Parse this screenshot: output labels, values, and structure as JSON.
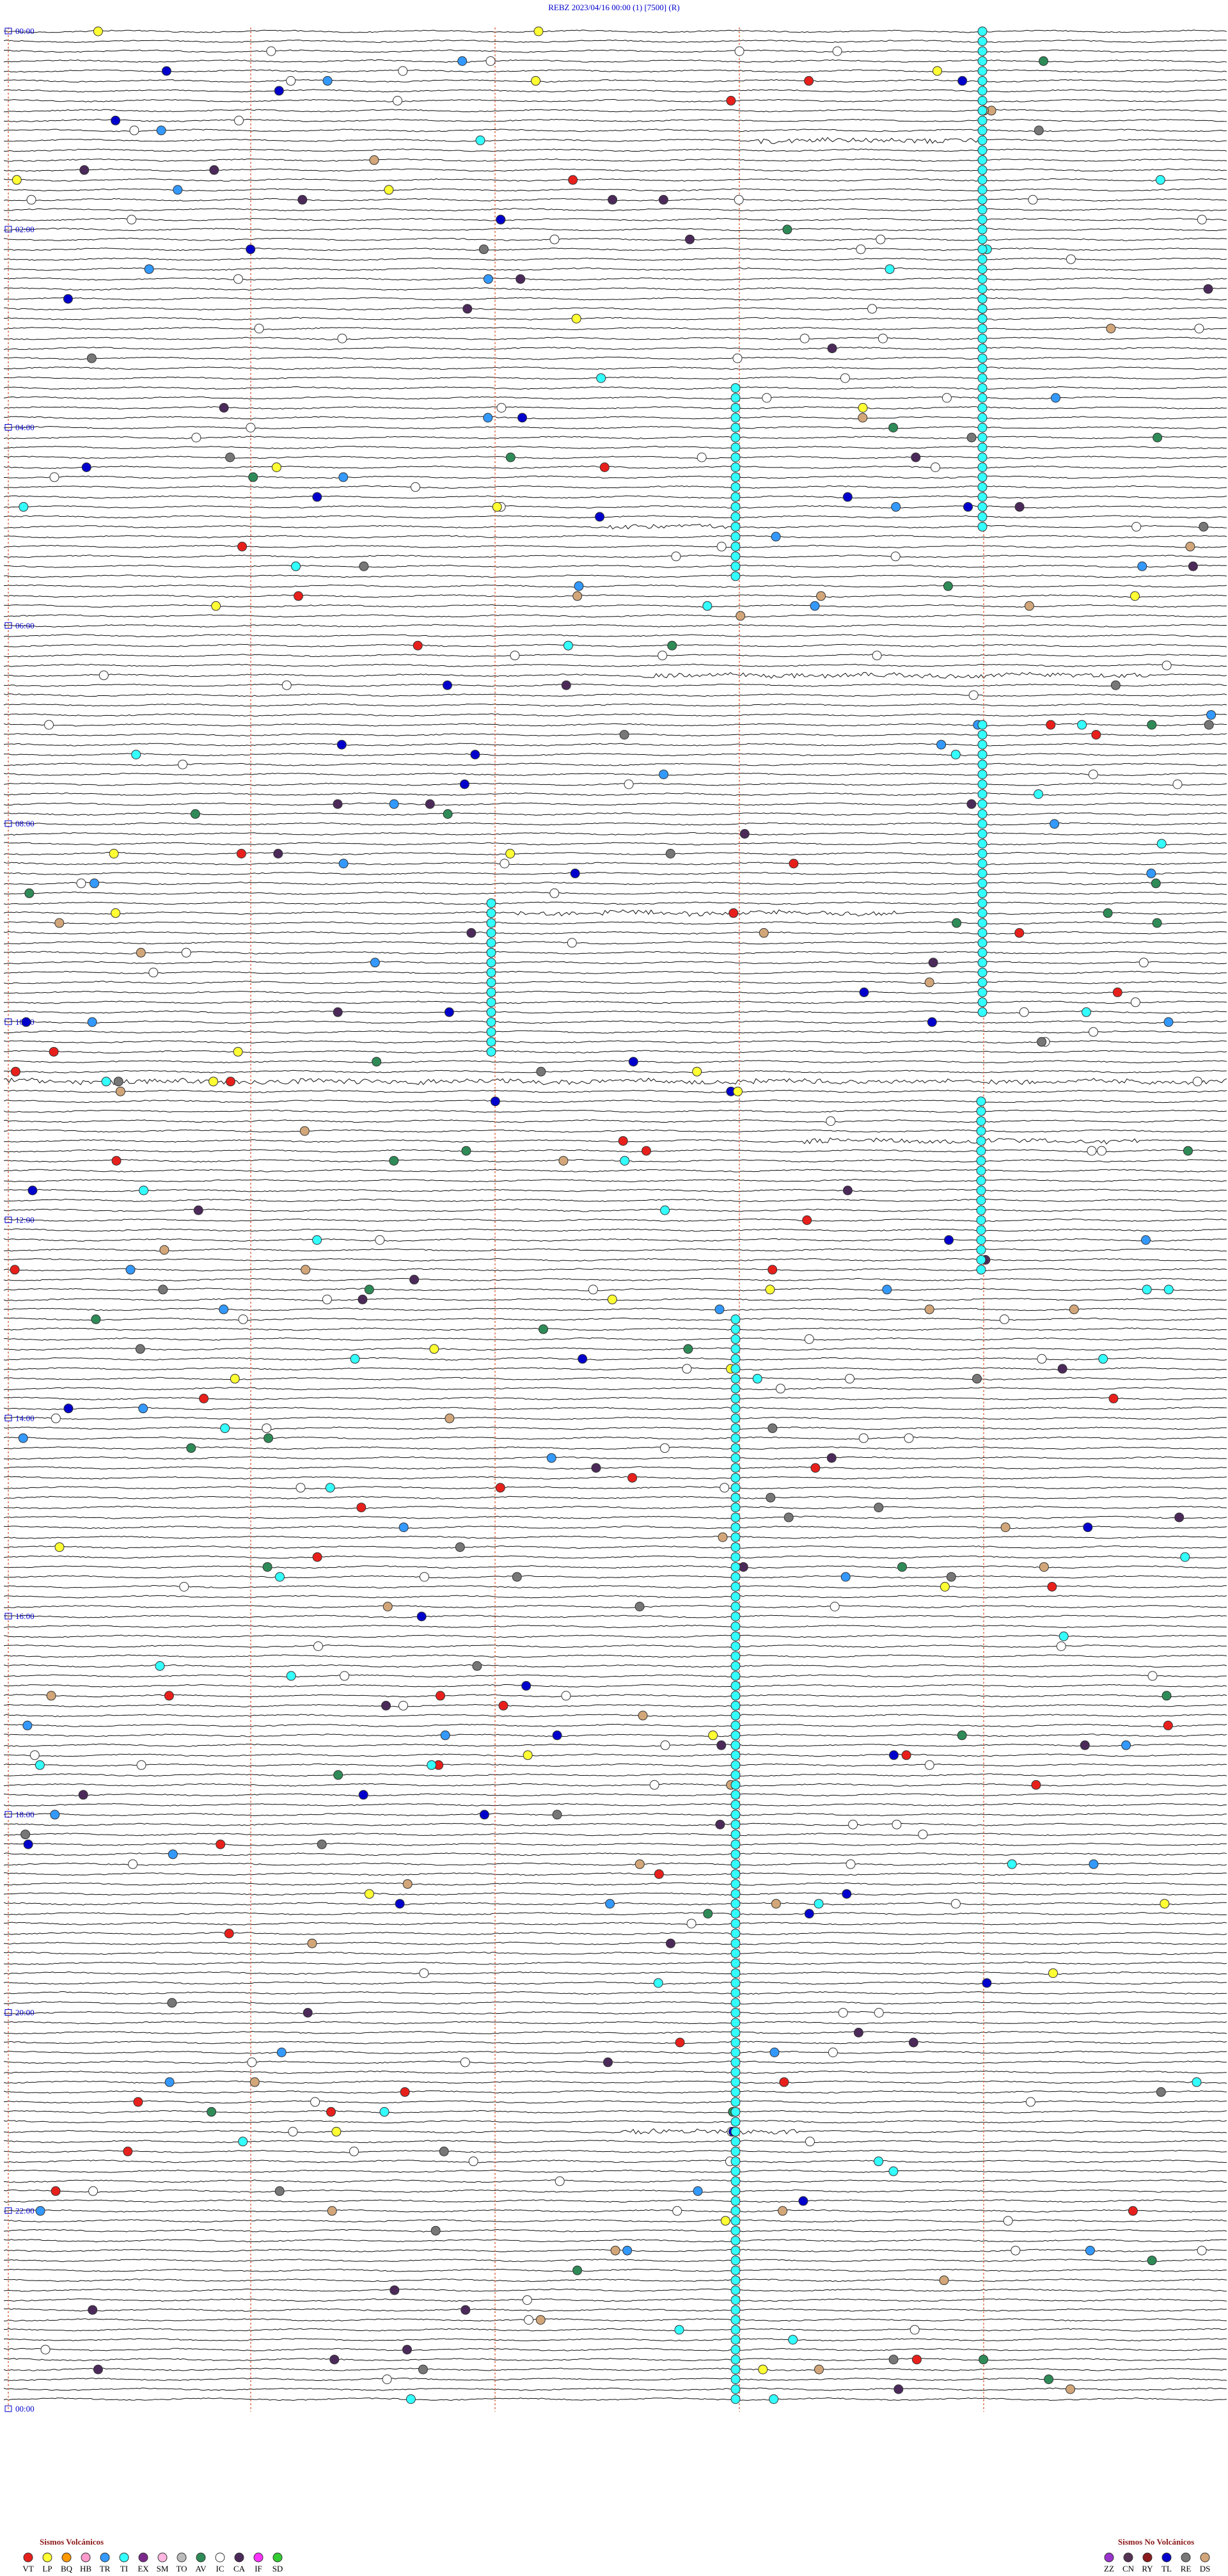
{
  "header": {
    "title": "REBZ     2023/04/16 00:00     (1)     [7500]    (R)"
  },
  "time_labels": [
    "00:00",
    "02:00",
    "04:00",
    "06:00",
    "08:00",
    "10:00",
    "12:00",
    "14:00",
    "16:00",
    "18:00",
    "20:00",
    "22:00",
    "00:00"
  ],
  "legend": {
    "volcanic": {
      "title": "Sismos Volcánicos",
      "items": [
        {
          "code": "VT",
          "color": "#e8201c"
        },
        {
          "code": "LP",
          "color": "#ffff33"
        },
        {
          "code": "BQ",
          "color": "#ff9900"
        },
        {
          "code": "HB",
          "color": "#ff99cc"
        },
        {
          "code": "TR",
          "color": "#3399ff"
        },
        {
          "code": "TI",
          "color": "#33ffff"
        },
        {
          "code": "EX",
          "color": "#7b2a8c"
        },
        {
          "code": "SM",
          "color": "#ffb6e0"
        },
        {
          "code": "TO",
          "color": "#bbbbbb"
        },
        {
          "code": "AV",
          "color": "#2e8b57"
        },
        {
          "code": "IC",
          "color": "#ffffff"
        },
        {
          "code": "CA",
          "color": "#4b2a5a"
        },
        {
          "code": "IF",
          "color": "#ff33ff"
        },
        {
          "code": "SD",
          "color": "#33cc33"
        }
      ]
    },
    "non_volcanic": {
      "title": "Sismos No Volcánicos",
      "items": [
        {
          "code": "ZZ",
          "color": "#9933cc"
        },
        {
          "code": "CN",
          "color": "#553355"
        },
        {
          "code": "RY",
          "color": "#8b1a1a"
        },
        {
          "code": "TL",
          "color": "#0000cc"
        },
        {
          "code": "RE",
          "color": "#777777"
        },
        {
          "code": "DS",
          "color": "#d2a679"
        }
      ]
    }
  }
}
